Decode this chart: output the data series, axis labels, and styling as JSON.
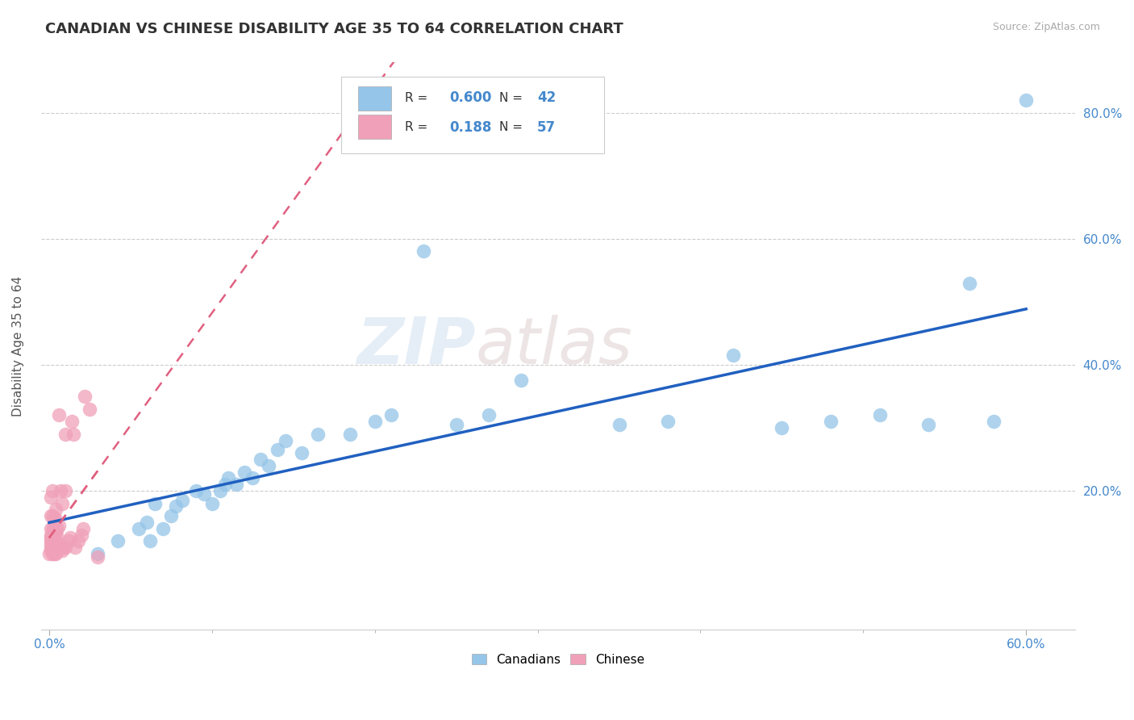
{
  "title": "CANADIAN VS CHINESE DISABILITY AGE 35 TO 64 CORRELATION CHART",
  "source_text": "Source: ZipAtlas.com",
  "ylabel": "Disability Age 35 to 64",
  "xlim": [
    -0.005,
    0.63
  ],
  "ylim": [
    -0.02,
    0.88
  ],
  "xtick_positions": [
    0.0,
    0.6
  ],
  "xticklabels": [
    "0.0%",
    "60.0%"
  ],
  "ytick_positions": [
    0.2,
    0.4,
    0.6,
    0.8
  ],
  "yticklabels": [
    "20.0%",
    "40.0%",
    "60.0%",
    "80.0%"
  ],
  "canadian_color": "#95C5E8",
  "chinese_color": "#F0A0B8",
  "canadian_line_color": "#2060C0",
  "chinese_line_color": "#E06080",
  "canadian_R": 0.6,
  "canadian_N": 42,
  "chinese_R": 0.188,
  "chinese_N": 57,
  "watermark_zip": "ZIP",
  "watermark_atlas": "atlas",
  "legend_label_canadian": "Canadians",
  "legend_label_chinese": "Chinese",
  "canadian_x": [
    0.03,
    0.042,
    0.055,
    0.06,
    0.062,
    0.065,
    0.07,
    0.075,
    0.078,
    0.082,
    0.09,
    0.095,
    0.1,
    0.105,
    0.108,
    0.11,
    0.115,
    0.12,
    0.125,
    0.13,
    0.135,
    0.14,
    0.145,
    0.155,
    0.165,
    0.185,
    0.2,
    0.21,
    0.23,
    0.25,
    0.27,
    0.29,
    0.35,
    0.38,
    0.42,
    0.45,
    0.48,
    0.51,
    0.54,
    0.565,
    0.58,
    0.6
  ],
  "canadian_y": [
    0.1,
    0.12,
    0.14,
    0.15,
    0.12,
    0.18,
    0.14,
    0.16,
    0.175,
    0.185,
    0.2,
    0.195,
    0.18,
    0.2,
    0.21,
    0.22,
    0.21,
    0.23,
    0.22,
    0.25,
    0.24,
    0.265,
    0.28,
    0.26,
    0.29,
    0.29,
    0.31,
    0.32,
    0.58,
    0.305,
    0.32,
    0.375,
    0.305,
    0.31,
    0.415,
    0.3,
    0.31,
    0.32,
    0.305,
    0.53,
    0.31,
    0.82
  ],
  "chinese_x": [
    0.0,
    0.001,
    0.001,
    0.001,
    0.001,
    0.001,
    0.001,
    0.001,
    0.001,
    0.001,
    0.002,
    0.002,
    0.002,
    0.002,
    0.002,
    0.002,
    0.002,
    0.002,
    0.002,
    0.003,
    0.003,
    0.003,
    0.003,
    0.003,
    0.003,
    0.004,
    0.004,
    0.004,
    0.004,
    0.004,
    0.004,
    0.005,
    0.005,
    0.005,
    0.005,
    0.006,
    0.006,
    0.006,
    0.007,
    0.007,
    0.008,
    0.008,
    0.009,
    0.01,
    0.01,
    0.01,
    0.012,
    0.013,
    0.014,
    0.015,
    0.016,
    0.018,
    0.02,
    0.021,
    0.022,
    0.025,
    0.03
  ],
  "chinese_y": [
    0.1,
    0.105,
    0.11,
    0.115,
    0.12,
    0.125,
    0.13,
    0.14,
    0.16,
    0.19,
    0.1,
    0.105,
    0.11,
    0.115,
    0.12,
    0.125,
    0.14,
    0.16,
    0.2,
    0.1,
    0.11,
    0.12,
    0.13,
    0.14,
    0.155,
    0.1,
    0.11,
    0.12,
    0.135,
    0.155,
    0.17,
    0.105,
    0.115,
    0.125,
    0.14,
    0.11,
    0.145,
    0.32,
    0.11,
    0.2,
    0.105,
    0.18,
    0.11,
    0.11,
    0.2,
    0.29,
    0.12,
    0.125,
    0.31,
    0.29,
    0.11,
    0.12,
    0.13,
    0.14,
    0.35,
    0.33,
    0.095
  ]
}
